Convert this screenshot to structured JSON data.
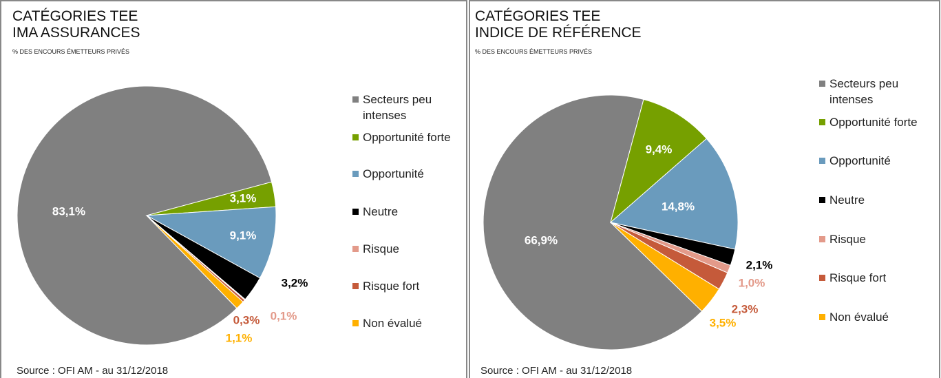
{
  "chart_data": [
    {
      "type": "pie",
      "title": [
        "CATÉGORIES TEE",
        "IMA ASSURANCES"
      ],
      "subtitle": "% DES ENCOURS ÉMETTEURS PRIVÉS",
      "source": "Source : OFI AM - au 31/12/2018",
      "categories": [
        "Secteurs peu intenses",
        "Opportunité forte",
        "Opportunité",
        "Neutre",
        "Risque",
        "Risque fort",
        "Non évalué"
      ],
      "values": [
        83.1,
        3.1,
        9.1,
        3.2,
        0.1,
        0.3,
        1.1
      ],
      "value_labels": [
        "83,1%",
        "3,1%",
        "9,1%",
        "3,2%",
        "0,1%",
        "0,3%",
        "1,1%"
      ],
      "colors": [
        "#808080",
        "#76a000",
        "#6a9bbd",
        "#000000",
        "#e39a8a",
        "#c55a3a",
        "#ffb000"
      ]
    },
    {
      "type": "pie",
      "title": [
        "CATÉGORIES TEE",
        "INDICE DE RÉFÉRENCE"
      ],
      "subtitle": "% DES ENCOURS ÉMETTEURS PRIVÉS",
      "source": "Source : OFI AM - au 31/12/2018",
      "categories": [
        "Secteurs peu intenses",
        "Opportunité forte",
        "Opportunité",
        "Neutre",
        "Risque",
        "Risque fort",
        "Non évalué"
      ],
      "values": [
        66.9,
        9.4,
        14.8,
        2.1,
        1.0,
        2.3,
        3.5
      ],
      "value_labels": [
        "66,9%",
        "9,4%",
        "14,8%",
        "2,1%",
        "1,0%",
        "2,3%",
        "3,5%"
      ],
      "colors": [
        "#808080",
        "#76a000",
        "#6a9bbd",
        "#000000",
        "#e39a8a",
        "#c55a3a",
        "#ffb000"
      ]
    }
  ]
}
